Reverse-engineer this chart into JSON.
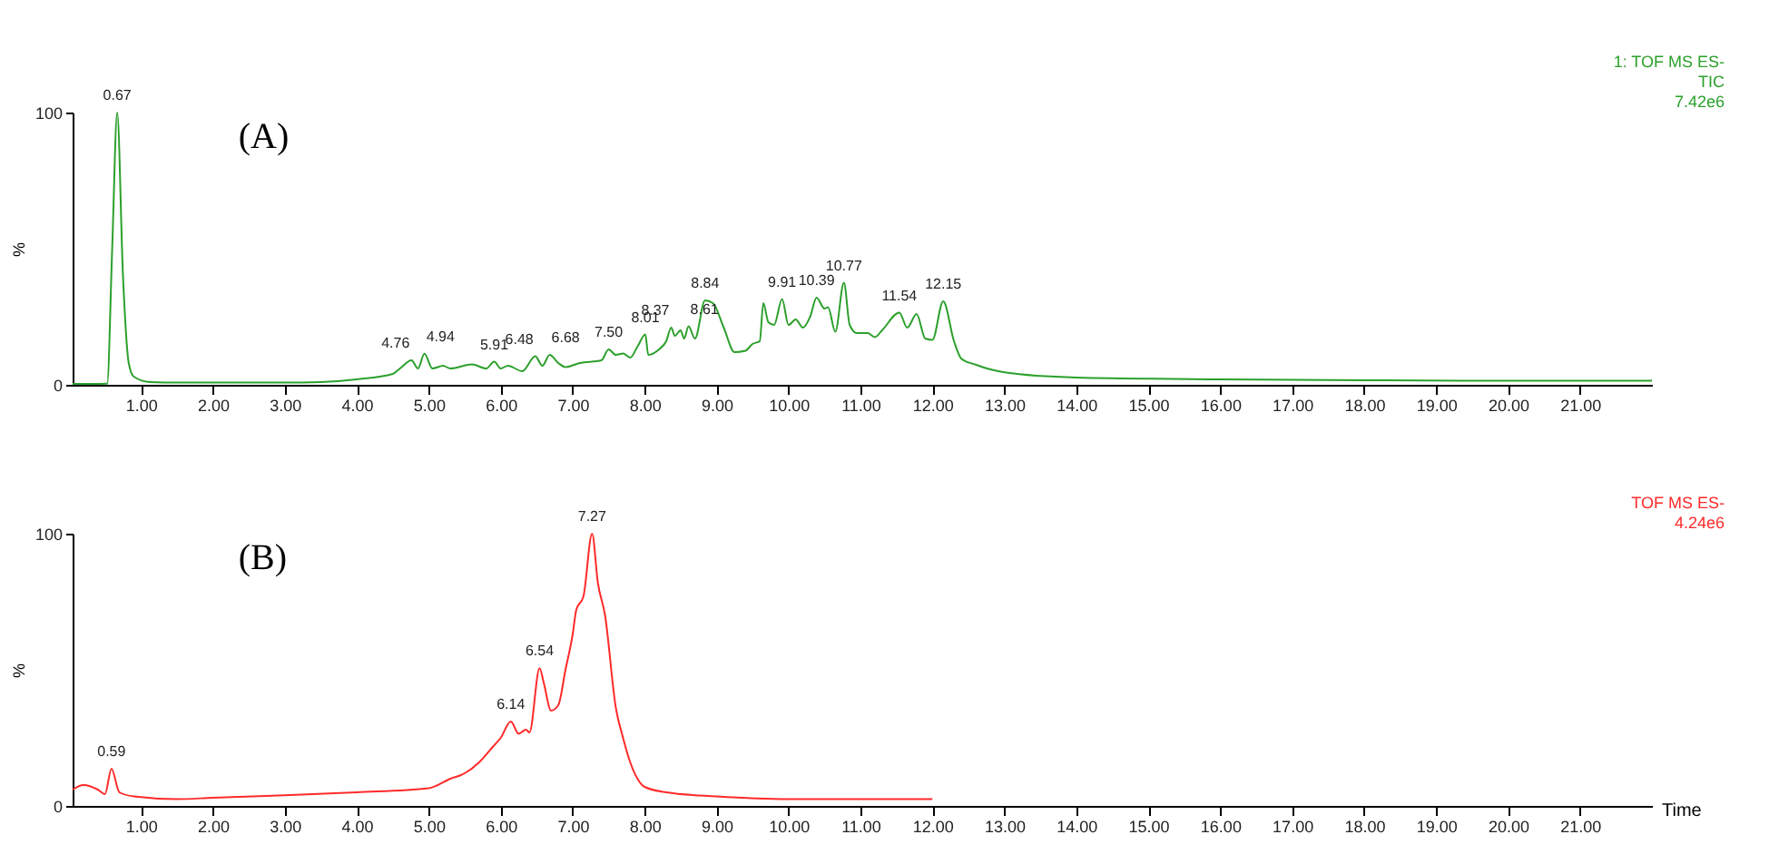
{
  "chart_data": [
    {
      "type": "line",
      "ylabel": "%",
      "xlim": [
        0.05,
        22
      ],
      "ylim": [
        0,
        100
      ],
      "yticks": [
        0,
        100
      ],
      "xticks": [
        {
          "value": 1,
          "label": "1.00"
        },
        {
          "value": 2,
          "label": "2.00"
        },
        {
          "value": 3,
          "label": "3.00"
        },
        {
          "value": 4,
          "label": "4.00"
        },
        {
          "value": 5,
          "label": "5.00"
        },
        {
          "value": 6,
          "label": "6.00"
        },
        {
          "value": 7,
          "label": "7.00"
        },
        {
          "value": 8,
          "label": "8.00"
        },
        {
          "value": 9,
          "label": "9.00"
        },
        {
          "value": 10,
          "label": "10.00"
        },
        {
          "value": 11,
          "label": "11.00"
        },
        {
          "value": 12,
          "label": "12.00"
        },
        {
          "value": 13,
          "label": "13.00"
        },
        {
          "value": 14,
          "label": "14.00"
        },
        {
          "value": 15,
          "label": "15.00"
        },
        {
          "value": 16,
          "label": "16.00"
        },
        {
          "value": 17,
          "label": "17.00"
        },
        {
          "value": 18,
          "label": "18.00"
        },
        {
          "value": 19,
          "label": "19.00"
        },
        {
          "value": 20,
          "label": "20.00"
        },
        {
          "value": 21,
          "label": "21.00"
        }
      ],
      "series": [
        {
          "color": "#2ca02c",
          "x": [
            0.05,
            0.3,
            0.53,
            0.6,
            0.67,
            0.75,
            0.83,
            0.9,
            1.13,
            1.5,
            2.0,
            3.0,
            3.5,
            4.0,
            4.5,
            4.6,
            4.76,
            4.85,
            4.94,
            5.05,
            5.2,
            5.3,
            5.6,
            5.8,
            5.91,
            6.0,
            6.1,
            6.3,
            6.48,
            6.58,
            6.68,
            6.8,
            6.9,
            7.1,
            7.4,
            7.5,
            7.6,
            7.7,
            7.8,
            7.9,
            8.01,
            8.05,
            8.2,
            8.3,
            8.37,
            8.42,
            8.5,
            8.55,
            8.61,
            8.7,
            8.84,
            8.95,
            9.1,
            9.25,
            9.4,
            9.5,
            9.6,
            9.65,
            9.72,
            9.8,
            9.91,
            10.0,
            10.1,
            10.2,
            10.3,
            10.39,
            10.5,
            10.55,
            10.65,
            10.77,
            10.85,
            10.95,
            11.1,
            11.2,
            11.3,
            11.54,
            11.65,
            11.78,
            11.9,
            12.0,
            12.15,
            12.3,
            12.4,
            12.6,
            13.0,
            14.0,
            16.0,
            18.0,
            20.0,
            22.0
          ],
          "values": [
            0.3,
            0.3,
            0.4,
            50,
            100,
            40,
            8,
            3,
            1,
            0.8,
            0.8,
            0.8,
            1,
            2,
            4,
            6,
            9,
            6,
            11.4,
            6,
            7,
            6,
            7.5,
            6,
            8.5,
            6,
            7,
            5,
            10.5,
            7,
            11,
            8,
            6.5,
            8,
            9,
            13,
            11,
            11.5,
            10,
            14,
            18.5,
            11,
            13,
            16,
            21,
            18,
            20,
            17,
            21.5,
            17,
            31,
            30,
            21,
            12,
            12.5,
            15,
            16,
            30,
            23,
            22,
            31.5,
            22,
            24,
            21,
            25,
            32,
            28,
            28.5,
            19.5,
            37.5,
            22,
            19,
            19,
            17.5,
            20,
            26.5,
            21,
            26,
            17,
            16.5,
            30.7,
            16,
            9.7,
            7.4,
            4.6,
            2.7,
            2,
            1.7,
            1.5,
            1.5
          ]
        }
      ],
      "annotations": [
        "(A)",
        "1: TOF MS ES-",
        "TIC",
        "7.42e6",
        {
          "text": "0.67",
          "x": 0.67,
          "y": 100
        },
        {
          "text": "4.76",
          "x": 4.76,
          "y": 9
        },
        {
          "text": "4.94",
          "x": 4.94,
          "y": 11.4
        },
        {
          "text": "5.91",
          "x": 5.91,
          "y": 8.5
        },
        {
          "text": "6.48",
          "x": 6.48,
          "y": 10.5
        },
        {
          "text": "6.68",
          "x": 6.68,
          "y": 11
        },
        {
          "text": "7.50",
          "x": 7.5,
          "y": 13
        },
        {
          "text": "8.01",
          "x": 8.01,
          "y": 18.5
        },
        {
          "text": "8.37",
          "x": 8.37,
          "y": 21
        },
        {
          "text": "8.61",
          "x": 8.61,
          "y": 21.5
        },
        {
          "text": "8.84",
          "x": 8.84,
          "y": 31
        },
        {
          "text": "9.91",
          "x": 9.91,
          "y": 31.5
        },
        {
          "text": "10.39",
          "x": 10.39,
          "y": 32
        },
        {
          "text": "10.77",
          "x": 10.77,
          "y": 37.5
        },
        {
          "text": "11.54",
          "x": 11.54,
          "y": 26.5
        },
        {
          "text": "12.15",
          "x": 12.15,
          "y": 30.7
        }
      ]
    },
    {
      "type": "line",
      "ylabel": "%",
      "xlabel": "Time",
      "xlim": [
        0.05,
        22
      ],
      "ylim": [
        0,
        100
      ],
      "yticks": [
        0,
        100
      ],
      "xticks": [
        {
          "value": 1,
          "label": "1.00"
        },
        {
          "value": 2,
          "label": "2.00"
        },
        {
          "value": 3,
          "label": "3.00"
        },
        {
          "value": 4,
          "label": "4.00"
        },
        {
          "value": 5,
          "label": "5.00"
        },
        {
          "value": 6,
          "label": "6.00"
        },
        {
          "value": 7,
          "label": "7.00"
        },
        {
          "value": 8,
          "label": "8.00"
        },
        {
          "value": 9,
          "label": "9.00"
        },
        {
          "value": 10,
          "label": "10.00"
        },
        {
          "value": 11,
          "label": "11.00"
        },
        {
          "value": 12,
          "label": "12.00"
        },
        {
          "value": 13,
          "label": "13.00"
        },
        {
          "value": 14,
          "label": "14.00"
        },
        {
          "value": 15,
          "label": "15.00"
        },
        {
          "value": 16,
          "label": "16.00"
        },
        {
          "value": 17,
          "label": "17.00"
        },
        {
          "value": 18,
          "label": "18.00"
        },
        {
          "value": 19,
          "label": "19.00"
        },
        {
          "value": 20,
          "label": "20.00"
        },
        {
          "value": 21,
          "label": "21.00"
        }
      ],
      "series": [
        {
          "color": "#ff2a2a",
          "x": [
            0.05,
            0.2,
            0.4,
            0.5,
            0.59,
            0.7,
            0.9,
            1.5,
            2.0,
            3.0,
            4.0,
            5.0,
            5.3,
            5.5,
            5.7,
            5.9,
            6.0,
            6.14,
            6.25,
            6.35,
            6.4,
            6.54,
            6.6,
            6.7,
            6.8,
            6.9,
            7.0,
            7.05,
            7.15,
            7.27,
            7.35,
            7.45,
            7.6,
            7.7,
            7.8,
            7.9,
            8.0,
            8.3,
            9.0,
            10.0,
            12.0
          ],
          "values": [
            6,
            7.7,
            6,
            4.3,
            13.7,
            5,
            3.5,
            2.5,
            3,
            3.9,
            5,
            6.5,
            10,
            12,
            16,
            22,
            25,
            31,
            26.5,
            28,
            27,
            50.6,
            45,
            35,
            37,
            50,
            63,
            72,
            77,
            100,
            82,
            70,
            36,
            25,
            16,
            10,
            7,
            5,
            3.5,
            2.5,
            2.5
          ]
        }
      ],
      "annotations": [
        "(B)",
        "TOF MS ES-",
        "4.24e6",
        {
          "text": "0.59",
          "x": 0.59,
          "y": 13.7
        },
        {
          "text": "6.14",
          "x": 6.14,
          "y": 31
        },
        {
          "text": "6.54",
          "x": 6.54,
          "y": 50.6
        },
        {
          "text": "7.27",
          "x": 7.27,
          "y": 100
        }
      ]
    }
  ]
}
